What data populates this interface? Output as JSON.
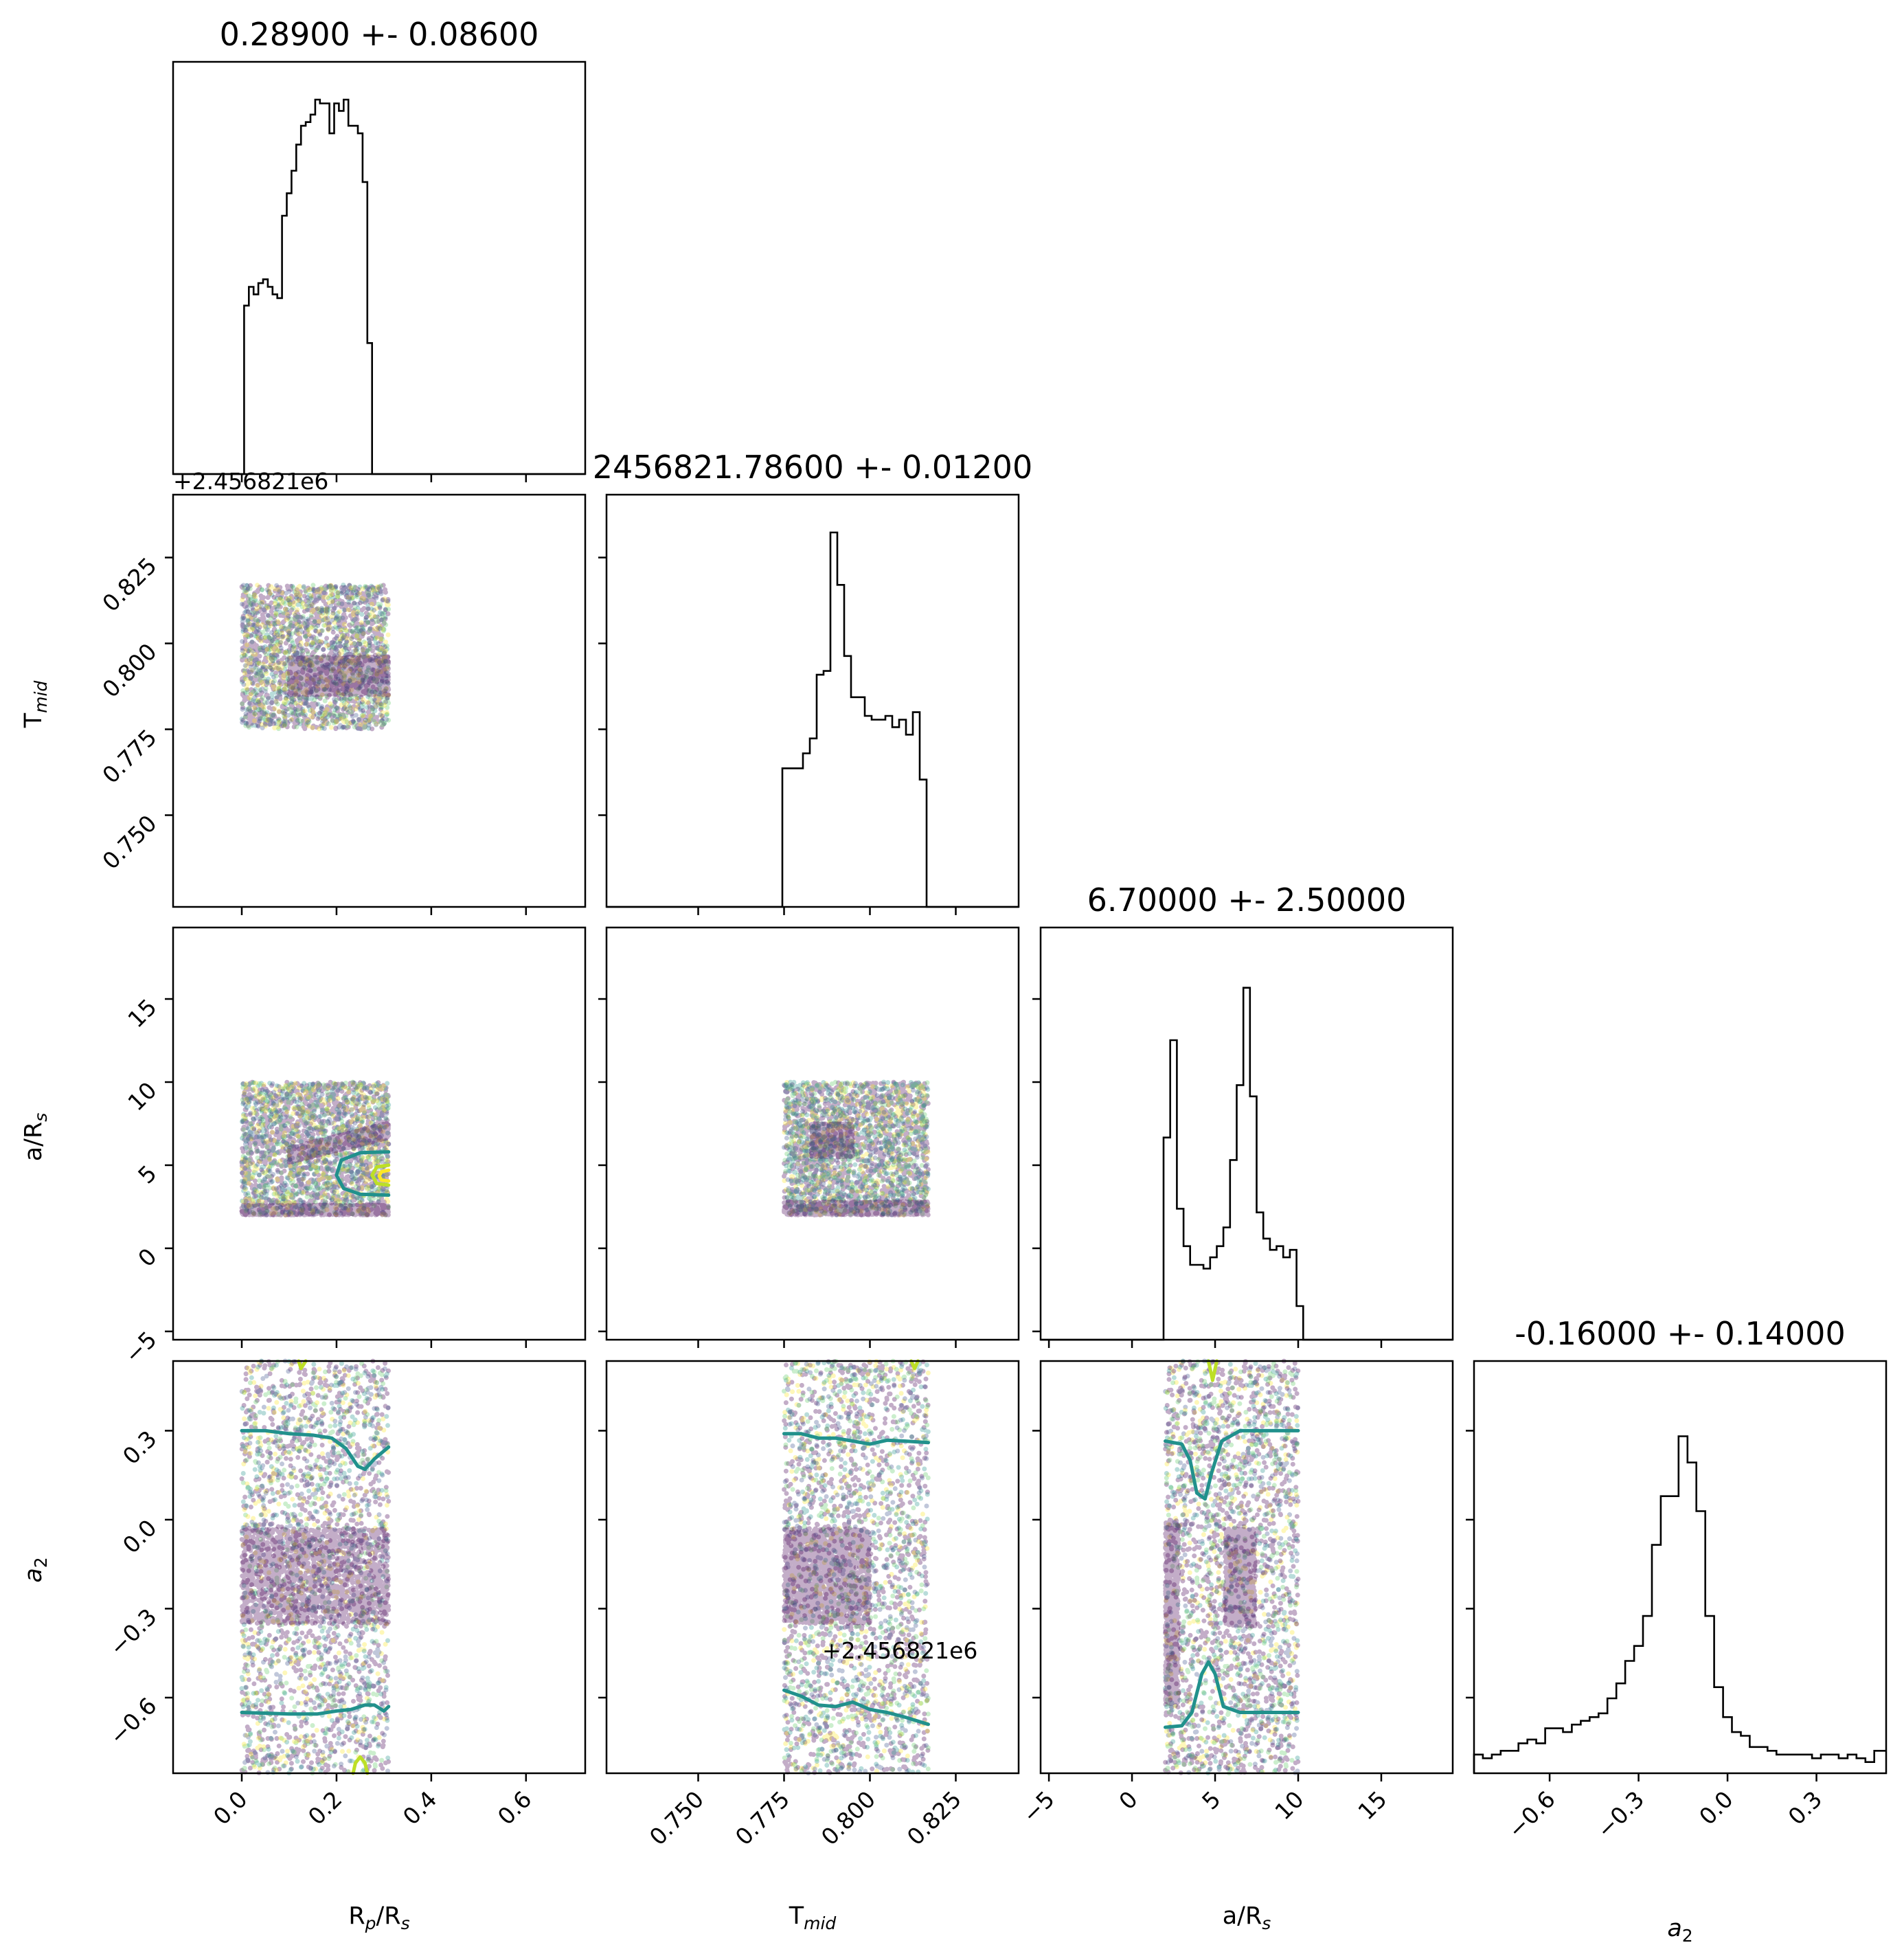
{
  "chart_data": {
    "type": "scatter",
    "plot_style": "corner plot",
    "parameters": [
      {
        "key": "rp",
        "label_main": "R",
        "label_sub": "p",
        "label_rest": "/R",
        "label_sub2": "s"
      },
      {
        "key": "tmid",
        "label_main": "T",
        "label_sub": "mid",
        "label_rest": "",
        "label_sub2": ""
      },
      {
        "key": "ars",
        "label_main": "a/R",
        "label_sub": "s",
        "label_rest": "",
        "label_sub2": ""
      },
      {
        "key": "a2",
        "label_main": "a",
        "label_sub": "2",
        "label_rest": "",
        "label_sub2": ""
      }
    ],
    "titles": [
      "0.28900 +- 0.08600",
      "2456821.78600 +- 0.01200",
      "6.70000 +- 2.50000",
      "-0.16000 +- 0.14000"
    ],
    "axes": {
      "rp": {
        "range": [
          -0.145,
          0.725
        ],
        "ticks": [
          0.0,
          0.2,
          0.4,
          0.6
        ],
        "tick_labels": [
          "0.0",
          "0.2",
          "0.4",
          "0.6"
        ],
        "offset": ""
      },
      "tmid": {
        "range": [
          0.7233,
          0.8433
        ],
        "ticks": [
          0.75,
          0.775,
          0.8,
          0.825
        ],
        "tick_labels": [
          "0.750",
          "0.775",
          "0.800",
          "0.825"
        ],
        "offset": "+2.456821e6"
      },
      "ars": {
        "range": [
          -5.5,
          19.3
        ],
        "ticks": [
          -5,
          0,
          5,
          10,
          15
        ],
        "tick_labels": [
          "−5",
          "0",
          "5",
          "10",
          "15"
        ],
        "offset": ""
      },
      "a2": {
        "range": [
          -0.855,
          0.535
        ],
        "ticks": [
          -0.6,
          -0.3,
          0.0,
          0.3
        ],
        "tick_labels": [
          "−0.6",
          "−0.3",
          "0.0",
          "0.3"
        ],
        "offset": ""
      }
    },
    "histograms": {
      "rp": {
        "edges": [
          -0.005,
          0.005,
          0.015,
          0.025,
          0.035,
          0.045,
          0.055,
          0.065,
          0.075,
          0.085,
          0.095,
          0.105,
          0.115,
          0.125,
          0.135,
          0.145,
          0.155,
          0.165,
          0.175,
          0.185,
          0.195,
          0.205,
          0.215,
          0.225,
          0.235,
          0.245,
          0.255,
          0.265,
          0.275,
          0.285,
          0.295,
          0.305,
          0.315,
          0.325,
          0.725
        ],
        "counts": [
          0,
          0.45,
          0.5,
          0.48,
          0.51,
          0.52,
          0.5,
          0.48,
          0.47,
          0.69,
          0.75,
          0.81,
          0.88,
          0.93,
          0.94,
          0.96,
          1.0,
          0.99,
          0.99,
          0.91,
          0.99,
          0.97,
          1.0,
          0.93,
          0.93,
          0.91,
          0.78,
          0.35,
          0,
          0,
          0,
          0,
          0,
          0
        ]
      },
      "tmid": {
        "edges": [
          0.7233,
          0.7745,
          0.7765,
          0.7785,
          0.7805,
          0.7825,
          0.7845,
          0.7865,
          0.7885,
          0.7905,
          0.7925,
          0.7945,
          0.7965,
          0.7985,
          0.8005,
          0.8025,
          0.8045,
          0.8065,
          0.8085,
          0.8105,
          0.8125,
          0.8145,
          0.8165,
          0.8433
        ],
        "counts": [
          0,
          0.37,
          0.37,
          0.37,
          0.41,
          0.45,
          0.62,
          0.63,
          1.0,
          0.86,
          0.67,
          0.56,
          0.56,
          0.51,
          0.5,
          0.5,
          0.51,
          0.48,
          0.5,
          0.46,
          0.52,
          0.34,
          0
        ]
      },
      "ars": {
        "edges": [
          -5.5,
          1.9,
          2.3,
          2.7,
          3.1,
          3.5,
          3.9,
          4.3,
          4.7,
          5.1,
          5.5,
          5.9,
          6.3,
          6.7,
          7.1,
          7.5,
          7.9,
          8.3,
          8.7,
          9.1,
          9.5,
          9.9,
          10.3,
          19.3
        ],
        "counts": [
          0,
          0.54,
          0.8,
          0.35,
          0.25,
          0.2,
          0.2,
          0.19,
          0.22,
          0.25,
          0.3,
          0.48,
          0.68,
          0.94,
          0.65,
          0.34,
          0.27,
          0.24,
          0.25,
          0.22,
          0.24,
          0.09,
          0
        ]
      },
      "a2": {
        "edges": [
          -0.855,
          -0.825,
          -0.795,
          -0.765,
          -0.735,
          -0.705,
          -0.675,
          -0.645,
          -0.615,
          -0.585,
          -0.555,
          -0.525,
          -0.495,
          -0.465,
          -0.435,
          -0.405,
          -0.375,
          -0.345,
          -0.315,
          -0.285,
          -0.255,
          -0.225,
          -0.195,
          -0.165,
          -0.135,
          -0.105,
          -0.075,
          -0.045,
          -0.015,
          0.015,
          0.045,
          0.075,
          0.105,
          0.135,
          0.165,
          0.195,
          0.225,
          0.255,
          0.285,
          0.315,
          0.345,
          0.375,
          0.405,
          0.435,
          0.465,
          0.495,
          0.535
        ],
        "counts": [
          0.05,
          0.04,
          0.05,
          0.06,
          0.06,
          0.08,
          0.09,
          0.08,
          0.12,
          0.12,
          0.11,
          0.13,
          0.14,
          0.15,
          0.16,
          0.2,
          0.24,
          0.3,
          0.34,
          0.42,
          0.61,
          0.74,
          0.74,
          0.9,
          0.83,
          0.7,
          0.42,
          0.23,
          0.15,
          0.11,
          0.1,
          0.07,
          0.07,
          0.06,
          0.05,
          0.05,
          0.05,
          0.05,
          0.04,
          0.05,
          0.05,
          0.04,
          0.05,
          0.04,
          0.03,
          0.06
        ]
      }
    },
    "scatter_cloud_regions": {
      "rp_tmid": {
        "x": [
          0.0,
          0.31
        ],
        "y": [
          0.775,
          0.817
        ],
        "dense": {
          "x": [
            0.1,
            0.31
          ],
          "y": [
            0.785,
            0.796
          ]
        }
      },
      "rp_ars": {
        "x": [
          0.0,
          0.31
        ],
        "y": [
          2.0,
          10.0
        ]
      },
      "rp_a2": {
        "x": [
          0.0,
          0.31
        ],
        "y": [
          -0.855,
          0.535
        ],
        "dense": {
          "x": [
            0.0,
            0.31
          ],
          "y": [
            -0.35,
            -0.03
          ]
        }
      },
      "tmid_ars": {
        "x": [
          0.775,
          0.817
        ],
        "y": [
          2.0,
          10.0
        ]
      },
      "tmid_a2": {
        "x": [
          0.775,
          0.817
        ],
        "y": [
          -0.855,
          0.535
        ],
        "dense": {
          "x": [
            0.775,
            0.8
          ],
          "y": [
            -0.35,
            -0.03
          ]
        }
      },
      "ars_a2": {
        "x": [
          2.0,
          10.0
        ],
        "y": [
          -0.855,
          0.535
        ]
      }
    },
    "contours": {
      "rp_ars": [
        {
          "color": "#21918c",
          "points": [
            [
              0.31,
              5.8
            ],
            [
              0.25,
              5.75
            ],
            [
              0.21,
              5.3
            ],
            [
              0.2,
              4.4
            ],
            [
              0.215,
              3.6
            ],
            [
              0.25,
              3.25
            ],
            [
              0.31,
              3.2
            ]
          ]
        },
        {
          "color": "#bddf26",
          "points": [
            [
              0.31,
              5.0
            ],
            [
              0.285,
              4.9
            ],
            [
              0.275,
              4.4
            ],
            [
              0.285,
              3.9
            ],
            [
              0.31,
              3.8
            ]
          ]
        },
        {
          "color": "#fde725",
          "points": [
            [
              0.31,
              4.7
            ],
            [
              0.295,
              4.6
            ],
            [
              0.29,
              4.35
            ],
            [
              0.295,
              4.1
            ],
            [
              0.31,
              4.05
            ]
          ]
        }
      ],
      "rp_a2": [
        {
          "color": "#21918c",
          "points": [
            [
              0.0,
              0.3
            ],
            [
              0.05,
              0.3
            ],
            [
              0.1,
              0.29
            ],
            [
              0.15,
              0.285
            ],
            [
              0.19,
              0.275
            ],
            [
              0.22,
              0.24
            ],
            [
              0.245,
              0.18
            ],
            [
              0.26,
              0.17
            ],
            [
              0.28,
              0.205
            ],
            [
              0.31,
              0.245
            ]
          ]
        },
        {
          "color": "#21918c",
          "points": [
            [
              0.0,
              -0.65
            ],
            [
              0.1,
              -0.655
            ],
            [
              0.16,
              -0.655
            ],
            [
              0.2,
              -0.645
            ],
            [
              0.23,
              -0.64
            ],
            [
              0.26,
              -0.625
            ],
            [
              0.28,
              -0.625
            ],
            [
              0.3,
              -0.645
            ],
            [
              0.31,
              -0.63
            ]
          ]
        },
        {
          "color": "#bddf26",
          "points": [
            [
              0.12,
              0.535
            ],
            [
              0.125,
              0.51
            ],
            [
              0.135,
              0.535
            ]
          ]
        },
        {
          "color": "#bddf26",
          "points": [
            [
              0.235,
              -0.855
            ],
            [
              0.24,
              -0.82
            ],
            [
              0.25,
              -0.8
            ],
            [
              0.26,
              -0.82
            ],
            [
              0.265,
              -0.855
            ]
          ]
        }
      ],
      "tmid_a2": [
        {
          "color": "#21918c",
          "points": [
            [
              0.775,
              0.29
            ],
            [
              0.78,
              0.29
            ],
            [
              0.785,
              0.275
            ],
            [
              0.79,
              0.275
            ],
            [
              0.795,
              0.265
            ],
            [
              0.8,
              0.255
            ],
            [
              0.805,
              0.268
            ],
            [
              0.81,
              0.265
            ],
            [
              0.817,
              0.26
            ]
          ]
        },
        {
          "color": "#21918c",
          "points": [
            [
              0.775,
              -0.575
            ],
            [
              0.78,
              -0.595
            ],
            [
              0.785,
              -0.625
            ],
            [
              0.79,
              -0.63
            ],
            [
              0.795,
              -0.615
            ],
            [
              0.8,
              -0.64
            ],
            [
              0.805,
              -0.65
            ],
            [
              0.81,
              -0.665
            ],
            [
              0.817,
              -0.69
            ]
          ]
        },
        {
          "color": "#bddf26",
          "points": [
            [
              0.814,
              0.535
            ],
            [
              0.813,
              0.51
            ],
            [
              0.812,
              0.535
            ]
          ]
        }
      ],
      "ars_a2": [
        {
          "color": "#21918c",
          "points": [
            [
              2.0,
              0.265
            ],
            [
              3.0,
              0.255
            ],
            [
              3.5,
              0.2
            ],
            [
              3.9,
              0.09
            ],
            [
              4.4,
              0.07
            ],
            [
              4.8,
              0.16
            ],
            [
              5.4,
              0.265
            ],
            [
              6.5,
              0.3
            ],
            [
              10.0,
              0.3
            ]
          ]
        },
        {
          "color": "#21918c",
          "points": [
            [
              2.0,
              -0.7
            ],
            [
              3.0,
              -0.695
            ],
            [
              3.6,
              -0.65
            ],
            [
              4.2,
              -0.52
            ],
            [
              4.6,
              -0.48
            ],
            [
              5.0,
              -0.52
            ],
            [
              5.5,
              -0.63
            ],
            [
              6.5,
              -0.65
            ],
            [
              10.0,
              -0.65
            ]
          ]
        },
        {
          "color": "#bddf26",
          "points": [
            [
              4.6,
              0.535
            ],
            [
              4.85,
              0.47
            ],
            [
              5.1,
              0.535
            ]
          ]
        }
      ]
    }
  }
}
